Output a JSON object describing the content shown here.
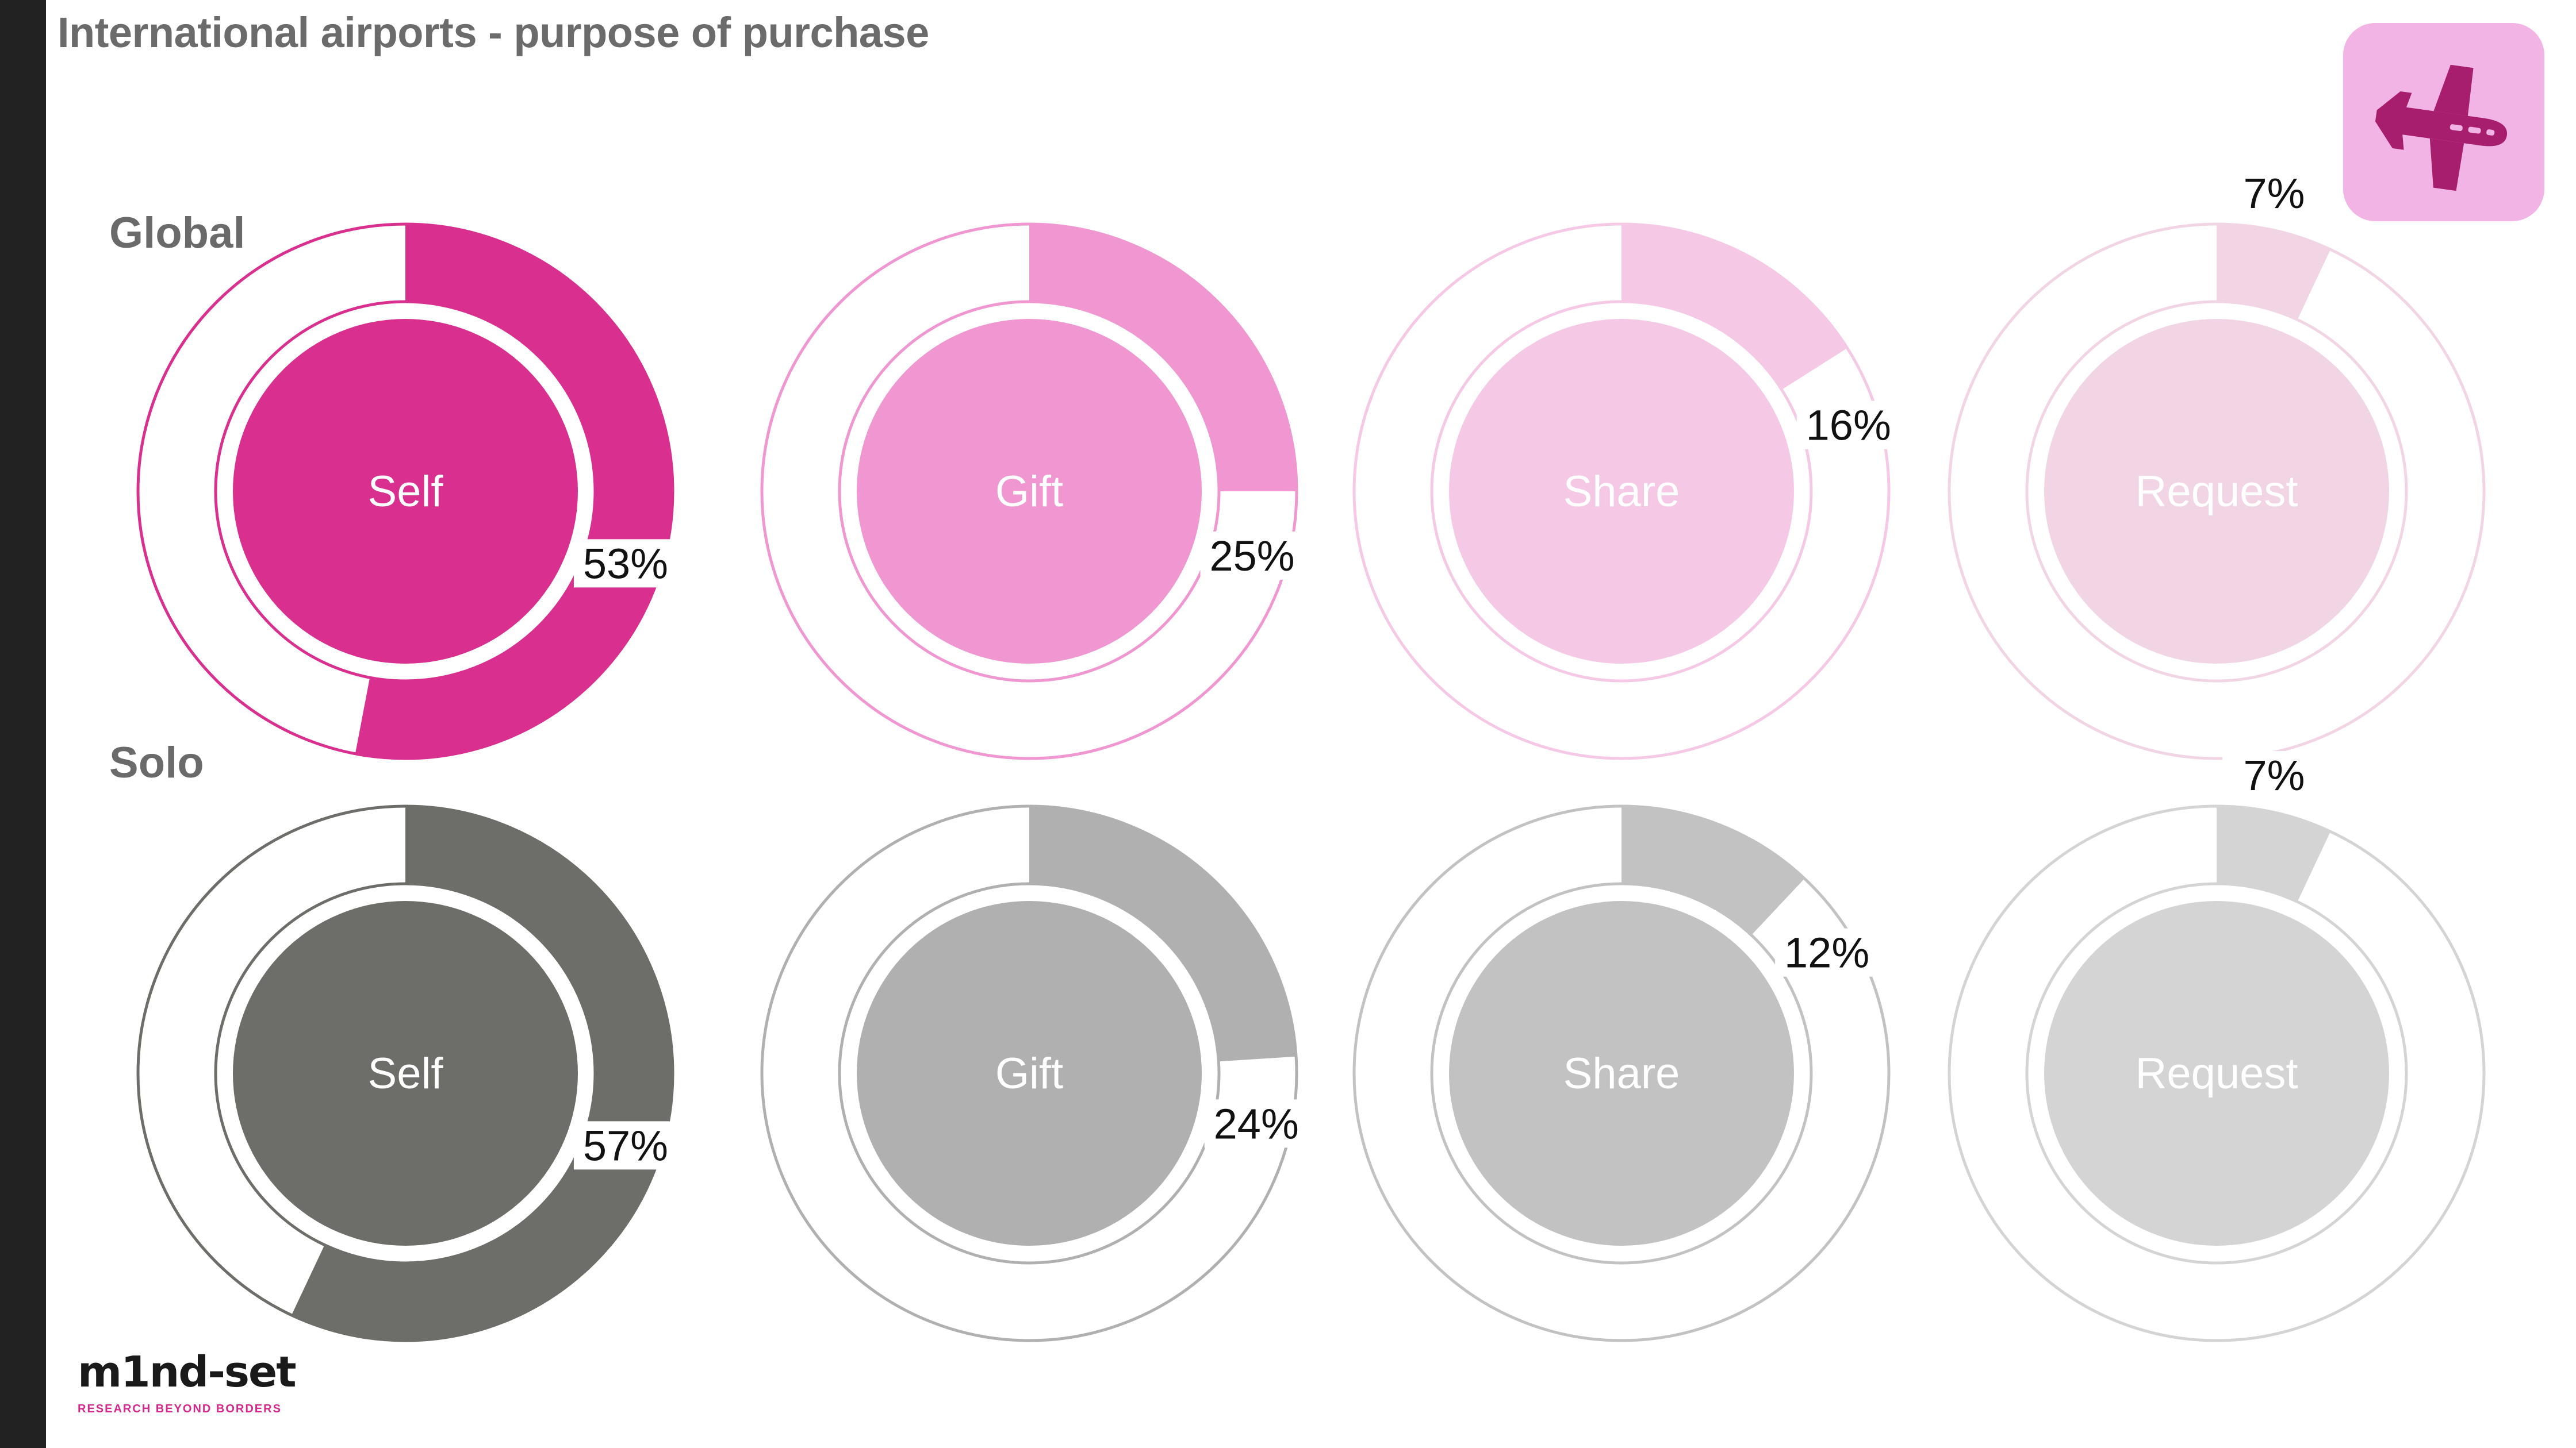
{
  "title": "International airports - purpose of purchase",
  "icon": "airplane-icon",
  "logo": {
    "wordmark": "m1nd-set",
    "tagline": "RESEARCH BEYOND BORDERS"
  },
  "colors": {
    "global": [
      "#d92f8f",
      "#f096d0",
      "#f5c9e6",
      "#f2d5e5"
    ],
    "solo": [
      "#6d6d69",
      "#b0b0b0",
      "#c2c2c2",
      "#d4d4d4"
    ],
    "icon_bg": "#f2b4e4",
    "icon_fg": "#a81e6e"
  },
  "chart_data": [
    {
      "type": "pie",
      "name": "Global",
      "categories": [
        "Self",
        "Gift",
        "Share",
        "Request"
      ],
      "values": [
        53,
        25,
        16,
        7
      ],
      "labels": [
        "53%",
        "25%",
        "16%",
        "7%"
      ]
    },
    {
      "type": "pie",
      "name": "Solo",
      "categories": [
        "Self",
        "Gift",
        "Share",
        "Request"
      ],
      "values": [
        57,
        24,
        12,
        7
      ],
      "labels": [
        "57%",
        "24%",
        "12%",
        "7%"
      ]
    }
  ]
}
